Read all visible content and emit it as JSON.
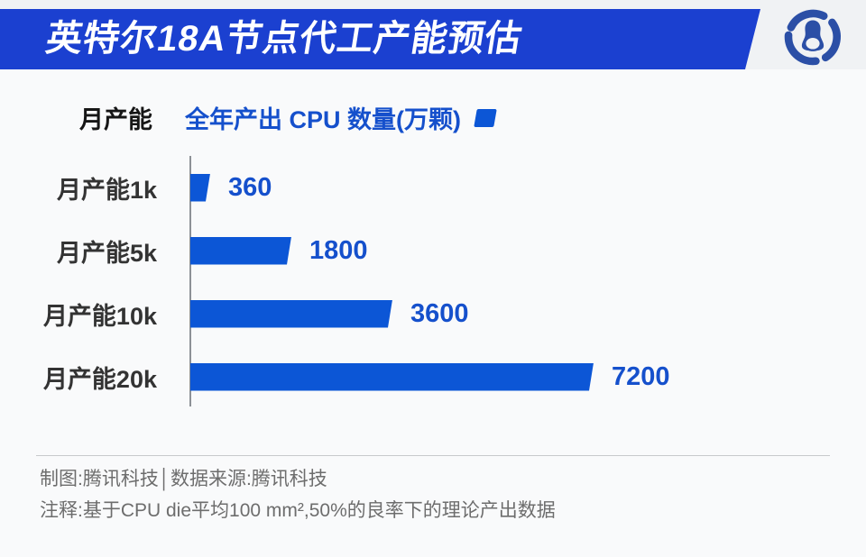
{
  "header": {
    "title": "英特尔18A节点代工产能预估",
    "logo": "tencent-penguin-logo"
  },
  "chart_data": {
    "type": "bar",
    "orientation": "horizontal",
    "category_axis_title": "月产能",
    "series_title": "全年产出 CPU 数量(万颗)",
    "categories": [
      "月产能1k",
      "月产能5k",
      "月产能10k",
      "月产能20k"
    ],
    "values": [
      360,
      1800,
      3600,
      7200
    ],
    "xmax": 7200,
    "unit": "万颗",
    "legend_position": "top",
    "grid": false,
    "bar_color": "#0c56d6",
    "value_label_color": "#1550cc"
  },
  "footer": {
    "credit": "制图:腾讯科技│数据来源:腾讯科技",
    "note": "注释:基于CPU die平均100 mm²,50%的良率下的理论产出数据"
  },
  "colors": {
    "banner_blue": "#1b40d0",
    "bar_blue": "#0c56d6",
    "text_blue": "#1550cc",
    "logo_blue": "#2b4fa6",
    "page_bg": "#f8f9fa",
    "axis_gray": "#8d9196",
    "footer_gray": "#6d6d6d"
  }
}
